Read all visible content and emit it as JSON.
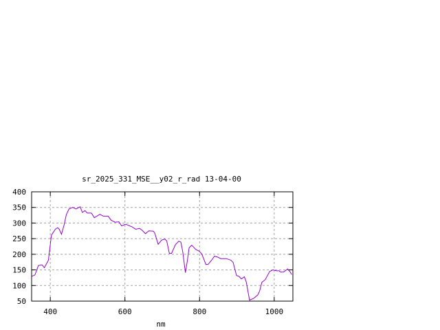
{
  "chart_data": {
    "type": "line",
    "title": "sr_2025_331_MSE__y02_r_rad 13-04-00",
    "xlabel": "nm",
    "ylabel": "",
    "xlim": [
      350,
      1050
    ],
    "ylim": [
      50,
      400
    ],
    "xticks": [
      400,
      600,
      800,
      1000
    ],
    "yticks": [
      50,
      100,
      150,
      200,
      250,
      300,
      350,
      400
    ],
    "grid": true,
    "series": [
      {
        "color": "#9400d3",
        "x": [
          350,
          359,
          368,
          378,
          384,
          390,
          395,
          403,
          414,
          420,
          424,
          430,
          437,
          443,
          450,
          460,
          469,
          480,
          486,
          493,
          499,
          510,
          518,
          533,
          542,
          555,
          563,
          573,
          584,
          591,
          602,
          619,
          629,
          639,
          646,
          655,
          664,
          676,
          680,
          689,
          698,
          706,
          712,
          719,
          725,
          735,
          744,
          750,
          755,
          759,
          762,
          767,
          772,
          779,
          790,
          799,
          806,
          817,
          823,
          832,
          840,
          848,
          857,
          872,
          884,
          890,
          899,
          906,
          912,
          920,
          925,
          934,
          945,
          956,
          961,
          967,
          976,
          988,
          997,
          1006,
          1013,
          1017,
          1025,
          1036,
          1043,
          1047
        ],
        "y": [
          129,
          134,
          164,
          166,
          157,
          170,
          181,
          261,
          281,
          285,
          280,
          264,
          294,
          327,
          345,
          350,
          345,
          352,
          334,
          340,
          332,
          332,
          317,
          328,
          322,
          322,
          309,
          303,
          304,
          291,
          296,
          288,
          280,
          283,
          277,
          266,
          275,
          274,
          268,
          232,
          245,
          249,
          243,
          203,
          203,
          230,
          242,
          239,
          207,
          170,
          141,
          178,
          221,
          229,
          215,
          210,
          201,
          167,
          168,
          181,
          194,
          191,
          186,
          186,
          181,
          174,
          132,
          129,
          121,
          128,
          112,
          53,
          59,
          70,
          83,
          110,
          119,
          145,
          150,
          147,
          147,
          143,
          143,
          153,
          143,
          135
        ]
      }
    ]
  }
}
